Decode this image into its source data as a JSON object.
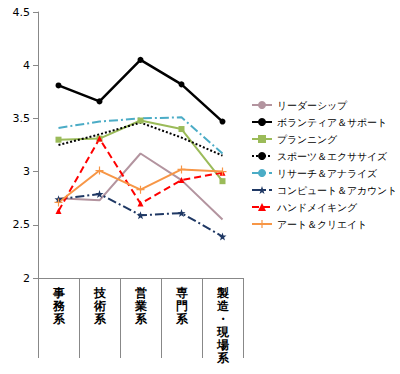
{
  "chart_data": {
    "type": "line",
    "categories": [
      "事務系",
      "技術系",
      "営業系",
      "専門系",
      "製造・現場系"
    ],
    "ylim": [
      2,
      4.5
    ],
    "yticks": [
      2,
      2.5,
      3,
      3.5,
      4,
      4.5
    ],
    "grid": false,
    "legend": "right",
    "series": [
      {
        "name": "リーダーシップ",
        "color": "#b3949f",
        "marker": "none",
        "line_style": "solid",
        "values": [
          2.75,
          2.73,
          3.17,
          2.92,
          2.55
        ]
      },
      {
        "name": "ボランティア＆サポート",
        "color": "#000000",
        "marker": "circle",
        "line_style": "solid",
        "values": [
          3.81,
          3.66,
          4.05,
          3.82,
          3.47
        ]
      },
      {
        "name": "プランニング",
        "color": "#9bbb59",
        "marker": "square",
        "line_style": "solid",
        "values": [
          3.3,
          3.31,
          3.48,
          3.4,
          2.91
        ]
      },
      {
        "name": "スポーツ＆エクササイズ",
        "color": "#000000",
        "marker": "none",
        "line_style": "dotted",
        "values": [
          3.25,
          3.35,
          3.46,
          3.32,
          3.15
        ]
      },
      {
        "name": "リサーチ＆アナライズ",
        "color": "#4bacc6",
        "marker": "none",
        "line_style": "dashdot",
        "values": [
          3.41,
          3.47,
          3.5,
          3.51,
          3.17
        ]
      },
      {
        "name": "コンピュート＆アカウント",
        "color": "#1f3864",
        "marker": "star",
        "line_style": "dashdot",
        "values": [
          2.74,
          2.79,
          2.59,
          2.61,
          2.39
        ]
      },
      {
        "name": "ハンドメイキング",
        "color": "#ff0000",
        "marker": "triangle",
        "line_style": "dashed",
        "values": [
          2.63,
          3.31,
          2.7,
          2.92,
          2.99
        ]
      },
      {
        "name": "アート＆クリエイト",
        "color": "#f79646",
        "marker": "plus",
        "line_style": "solid",
        "values": [
          2.71,
          3.01,
          2.83,
          3.02,
          3.0
        ]
      }
    ]
  }
}
